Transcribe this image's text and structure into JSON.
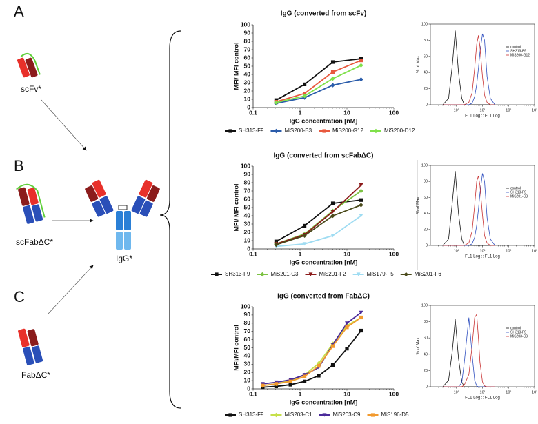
{
  "diagram": {
    "panel_letters": [
      "A",
      "B",
      "C"
    ],
    "constructs": [
      "scFv*",
      "scFabΔC*",
      "FabΔC*"
    ],
    "product": "IgG*"
  },
  "chart_data": [
    {
      "type": "line",
      "title": "IgG (converted from scFv)",
      "xlabel": "IgG concentration [nM]",
      "ylabel": "MFI/ MFI control",
      "xscale": "log",
      "x": [
        0.31,
        1.25,
        5,
        20
      ],
      "xlim": [
        0.1,
        100
      ],
      "xticks": [
        0.1,
        1,
        10,
        100
      ],
      "ylim": [
        0,
        100
      ],
      "yticks": [
        0,
        10,
        20,
        30,
        40,
        50,
        60,
        70,
        80,
        90,
        100
      ],
      "markers": true,
      "legend": "bottom",
      "series": [
        {
          "name": "SH313-F9",
          "color": "#111111",
          "marker": "square",
          "values": [
            9,
            28,
            55,
            59
          ]
        },
        {
          "name": "MiS200-B3",
          "color": "#2a5caa",
          "marker": "diamond",
          "values": [
            5,
            12,
            27,
            34
          ]
        },
        {
          "name": "MiS200-G12",
          "color": "#e8593e",
          "marker": "square",
          "values": [
            7,
            17,
            43,
            57
          ]
        },
        {
          "name": "MiS200-D12",
          "color": "#7fe04a",
          "marker": "diamond",
          "values": [
            6,
            14,
            35,
            51
          ]
        }
      ]
    },
    {
      "type": "line",
      "xlabel": "FL1 Log :: FL1 Log",
      "ylabel": "% of Max",
      "xscale": "log",
      "frame": true,
      "legend": "upper right",
      "x": [
        0.3,
        0.5,
        0.7,
        0.9,
        1.2,
        1.6,
        2,
        3,
        4,
        5,
        6,
        7,
        8,
        10,
        12,
        15,
        20,
        30
      ],
      "xlim": [
        0.1,
        1000
      ],
      "xticks": [
        {
          "value": 1,
          "label": "10⁰"
        },
        {
          "value": 10,
          "label": "10¹"
        },
        {
          "value": 100,
          "label": "10²"
        },
        {
          "value": 1000,
          "label": "10³"
        }
      ],
      "ylim": [
        0,
        100
      ],
      "yticks": [
        0,
        20,
        40,
        60,
        80,
        100
      ],
      "series": [
        {
          "name": "control",
          "color": "#111111",
          "values": [
            0,
            8,
            50,
            92,
            40,
            8,
            0,
            0,
            0,
            0,
            0,
            0,
            0,
            0,
            0,
            0,
            0,
            0
          ]
        },
        {
          "name": "SH313-F9",
          "color": "#3050c0",
          "values": [
            0,
            0,
            0,
            0,
            0,
            0,
            0,
            0,
            2,
            10,
            25,
            45,
            65,
            88,
            80,
            35,
            8,
            0
          ]
        },
        {
          "name": "MiS200-G12",
          "color": "#c83030",
          "values": [
            0,
            0,
            0,
            0,
            0,
            0,
            0,
            3,
            15,
            45,
            75,
            86,
            72,
            35,
            12,
            3,
            0,
            0
          ]
        }
      ]
    },
    {
      "type": "line",
      "title": "IgG (converted from scFabΔC)",
      "xlabel": "IgG concentration [nM]",
      "ylabel": "MFI/ MFI control",
      "xscale": "log",
      "x": [
        0.31,
        1.25,
        5,
        20
      ],
      "xlim": [
        0.1,
        100
      ],
      "xticks": [
        0.1,
        1,
        10,
        100
      ],
      "ylim": [
        0,
        100
      ],
      "yticks": [
        0,
        10,
        20,
        30,
        40,
        50,
        60,
        70,
        80,
        90,
        100
      ],
      "markers": true,
      "legend": "bottom",
      "series": [
        {
          "name": "SH313-F9",
          "color": "#111111",
          "marker": "square",
          "values": [
            9,
            28,
            55,
            59
          ]
        },
        {
          "name": "MiS201-C3",
          "color": "#7cc243",
          "marker": "diamond",
          "values": [
            6,
            18,
            46,
            70
          ]
        },
        {
          "name": "MiS201-F2",
          "color": "#8b1a1a",
          "marker": "triangle",
          "values": [
            6,
            17,
            45,
            77
          ]
        },
        {
          "name": "MiS179-F5",
          "color": "#9fdcf2",
          "marker": "triangle",
          "values": [
            3,
            6,
            16,
            40
          ]
        },
        {
          "name": "MiS201-F6",
          "color": "#4a4a1a",
          "marker": "diamond",
          "values": [
            5,
            16,
            40,
            53
          ]
        }
      ]
    },
    {
      "type": "line",
      "xlabel": "FL1 Log :: FL1 Log",
      "ylabel": "% of Max",
      "xscale": "log",
      "frame": true,
      "legend": "upper right",
      "x": [
        0.3,
        0.5,
        0.7,
        0.9,
        1.2,
        1.6,
        2,
        3,
        4,
        5,
        6,
        7,
        8,
        10,
        12,
        15,
        20,
        30
      ],
      "xlim": [
        0.1,
        1000
      ],
      "xticks": [
        {
          "value": 1,
          "label": "10⁰"
        },
        {
          "value": 10,
          "label": "10¹"
        },
        {
          "value": 100,
          "label": "10²"
        },
        {
          "value": 1000,
          "label": "10³"
        }
      ],
      "ylim": [
        0,
        100
      ],
      "yticks": [
        0,
        20,
        40,
        60,
        80,
        100
      ],
      "series": [
        {
          "name": "control",
          "color": "#111111",
          "values": [
            0,
            8,
            55,
            93,
            40,
            8,
            0,
            0,
            0,
            0,
            0,
            0,
            0,
            0,
            0,
            0,
            0,
            0
          ]
        },
        {
          "name": "SH313-F9",
          "color": "#3050c0",
          "values": [
            0,
            0,
            0,
            0,
            0,
            0,
            0,
            0,
            2,
            10,
            25,
            45,
            65,
            90,
            80,
            35,
            8,
            0
          ]
        },
        {
          "name": "MiS201-C3",
          "color": "#c83030",
          "values": [
            0,
            0,
            0,
            0,
            0,
            0,
            0,
            3,
            18,
            50,
            80,
            87,
            75,
            38,
            12,
            3,
            0,
            0
          ]
        }
      ]
    },
    {
      "type": "line",
      "title": "IgG (converted from FabΔC)",
      "xlabel": "IgG concentration [nM]",
      "ylabel": "MFI/MFI control",
      "xscale": "log",
      "x": [
        0.16,
        0.31,
        0.625,
        1.25,
        2.5,
        5,
        10,
        20
      ],
      "xlim": [
        0.1,
        100
      ],
      "xticks": [
        0.1,
        1,
        10,
        100
      ],
      "ylim": [
        0,
        100
      ],
      "yticks": [
        0,
        10,
        20,
        30,
        40,
        50,
        60,
        70,
        80,
        90,
        100
      ],
      "markers": true,
      "legend": "bottom",
      "series": [
        {
          "name": "SH313-F9",
          "color": "#111111",
          "marker": "square",
          "values": [
            2,
            3,
            5,
            9,
            16,
            29,
            49,
            71
          ]
        },
        {
          "name": "MiS203-C1",
          "color": "#c6e04a",
          "marker": "diamond",
          "values": [
            4,
            6,
            10,
            17,
            31,
            55,
            77,
            87
          ]
        },
        {
          "name": "MiS203-C9",
          "color": "#4b2a9a",
          "marker": "triangle",
          "values": [
            6,
            8,
            11,
            17,
            26,
            54,
            80,
            93
          ]
        },
        {
          "name": "MiS196-D5",
          "color": "#f29a2e",
          "marker": "square",
          "values": [
            4,
            6,
            9,
            15,
            28,
            52,
            75,
            87
          ]
        }
      ]
    },
    {
      "type": "line",
      "xlabel": "FL1 Log :: FL1 Log",
      "ylabel": "% of Max",
      "xscale": "log",
      "frame": true,
      "legend": "upper right",
      "x": [
        0.3,
        0.5,
        0.7,
        0.9,
        1.2,
        1.6,
        2,
        3,
        4,
        5,
        6,
        7,
        8,
        10,
        12,
        15,
        20,
        30
      ],
      "xlim": [
        0.1,
        1000
      ],
      "xticks": [
        {
          "value": 1,
          "label": "10⁰"
        },
        {
          "value": 10,
          "label": "10¹"
        },
        {
          "value": 100,
          "label": "10²"
        },
        {
          "value": 1000,
          "label": "10³"
        }
      ],
      "ylim": [
        0,
        100
      ],
      "yticks": [
        0,
        20,
        40,
        60,
        80,
        100
      ],
      "series": [
        {
          "name": "control",
          "color": "#111111",
          "values": [
            0,
            8,
            45,
            83,
            35,
            6,
            0,
            0,
            0,
            0,
            0,
            0,
            0,
            0,
            0,
            0,
            0,
            0
          ]
        },
        {
          "name": "SH313-F9",
          "color": "#3050c0",
          "values": [
            0,
            0,
            0,
            0,
            0,
            5,
            30,
            85,
            40,
            8,
            1,
            0,
            0,
            0,
            0,
            0,
            0,
            0
          ]
        },
        {
          "name": "MiS203-C9",
          "color": "#c83030",
          "values": [
            0,
            0,
            0,
            0,
            0,
            0,
            2,
            15,
            50,
            85,
            89,
            60,
            30,
            6,
            1,
            0,
            0,
            0
          ]
        }
      ]
    }
  ]
}
